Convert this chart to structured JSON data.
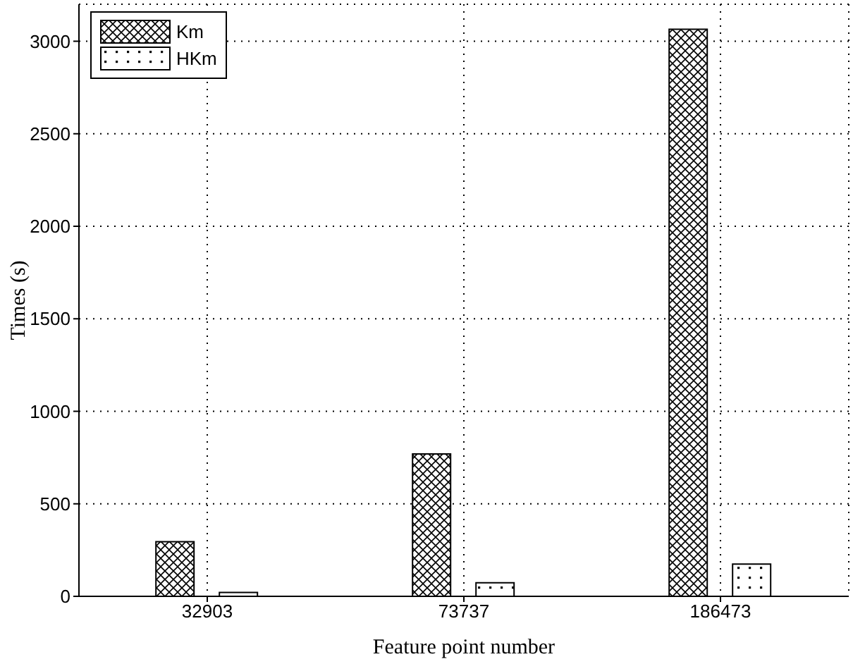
{
  "chart_data": {
    "type": "bar",
    "xlabel": "Feature point number",
    "ylabel": "Times (s)",
    "categories": [
      "32903",
      "73737",
      "186473"
    ],
    "series": [
      {
        "name": "Km",
        "color": "#000000",
        "values": [
          295,
          770,
          3065
        ]
      },
      {
        "name": "HKm",
        "color": "#000000",
        "values": [
          21,
          73,
          174
        ]
      }
    ],
    "ylim": [
      0,
      3200
    ],
    "yticks": [
      0,
      500,
      1000,
      1500,
      2000,
      2500,
      3000
    ],
    "grid": true,
    "legend": "top left"
  }
}
